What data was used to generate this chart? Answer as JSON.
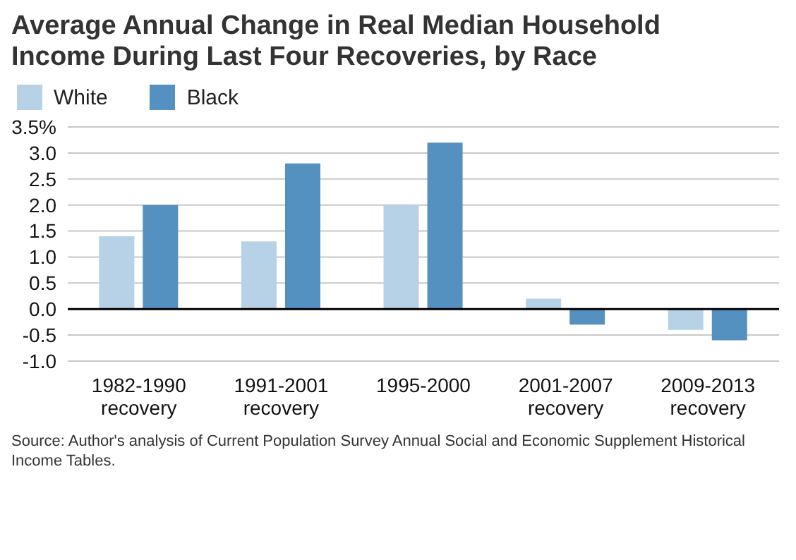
{
  "chart_data": {
    "type": "bar",
    "title": "Average Annual Change in Real Median Household Income During Last Four Recoveries, by Race",
    "categories": [
      "1982-1990\nrecovery",
      "1991-2001\nrecovery",
      "1995-2000",
      "2001-2007\nrecovery",
      "2009-2013\nrecovery"
    ],
    "series": [
      {
        "name": "White",
        "color": "#b7d2e6",
        "values": [
          1.4,
          1.3,
          2.0,
          0.2,
          -0.4
        ]
      },
      {
        "name": "Black",
        "color": "#5490c0",
        "values": [
          2.0,
          2.8,
          3.2,
          -0.3,
          -0.6
        ]
      }
    ],
    "ylim": [
      -1,
      3.5
    ],
    "yticks": [
      {
        "value": -1,
        "label": "-1.0"
      },
      {
        "value": -0.5,
        "label": "-0.5"
      },
      {
        "value": 0,
        "label": "0.0"
      },
      {
        "value": 0.5,
        "label": "0.5"
      },
      {
        "value": 1,
        "label": "1.0"
      },
      {
        "value": 1.5,
        "label": "1.5"
      },
      {
        "value": 2,
        "label": "2.0"
      },
      {
        "value": 2.5,
        "label": "2.5"
      },
      {
        "value": 3,
        "label": "3.0"
      },
      {
        "value": 3.5,
        "label": "3.5%"
      }
    ],
    "ref_lines": [
      {
        "axis": "y",
        "value": 0,
        "color": "#000000"
      }
    ],
    "grid": "y",
    "legend": "top left",
    "annotations": [
      "Source: Author's analysis of Current Population Survey Annual Social and Economic Supplement Historical Income Tables."
    ]
  }
}
